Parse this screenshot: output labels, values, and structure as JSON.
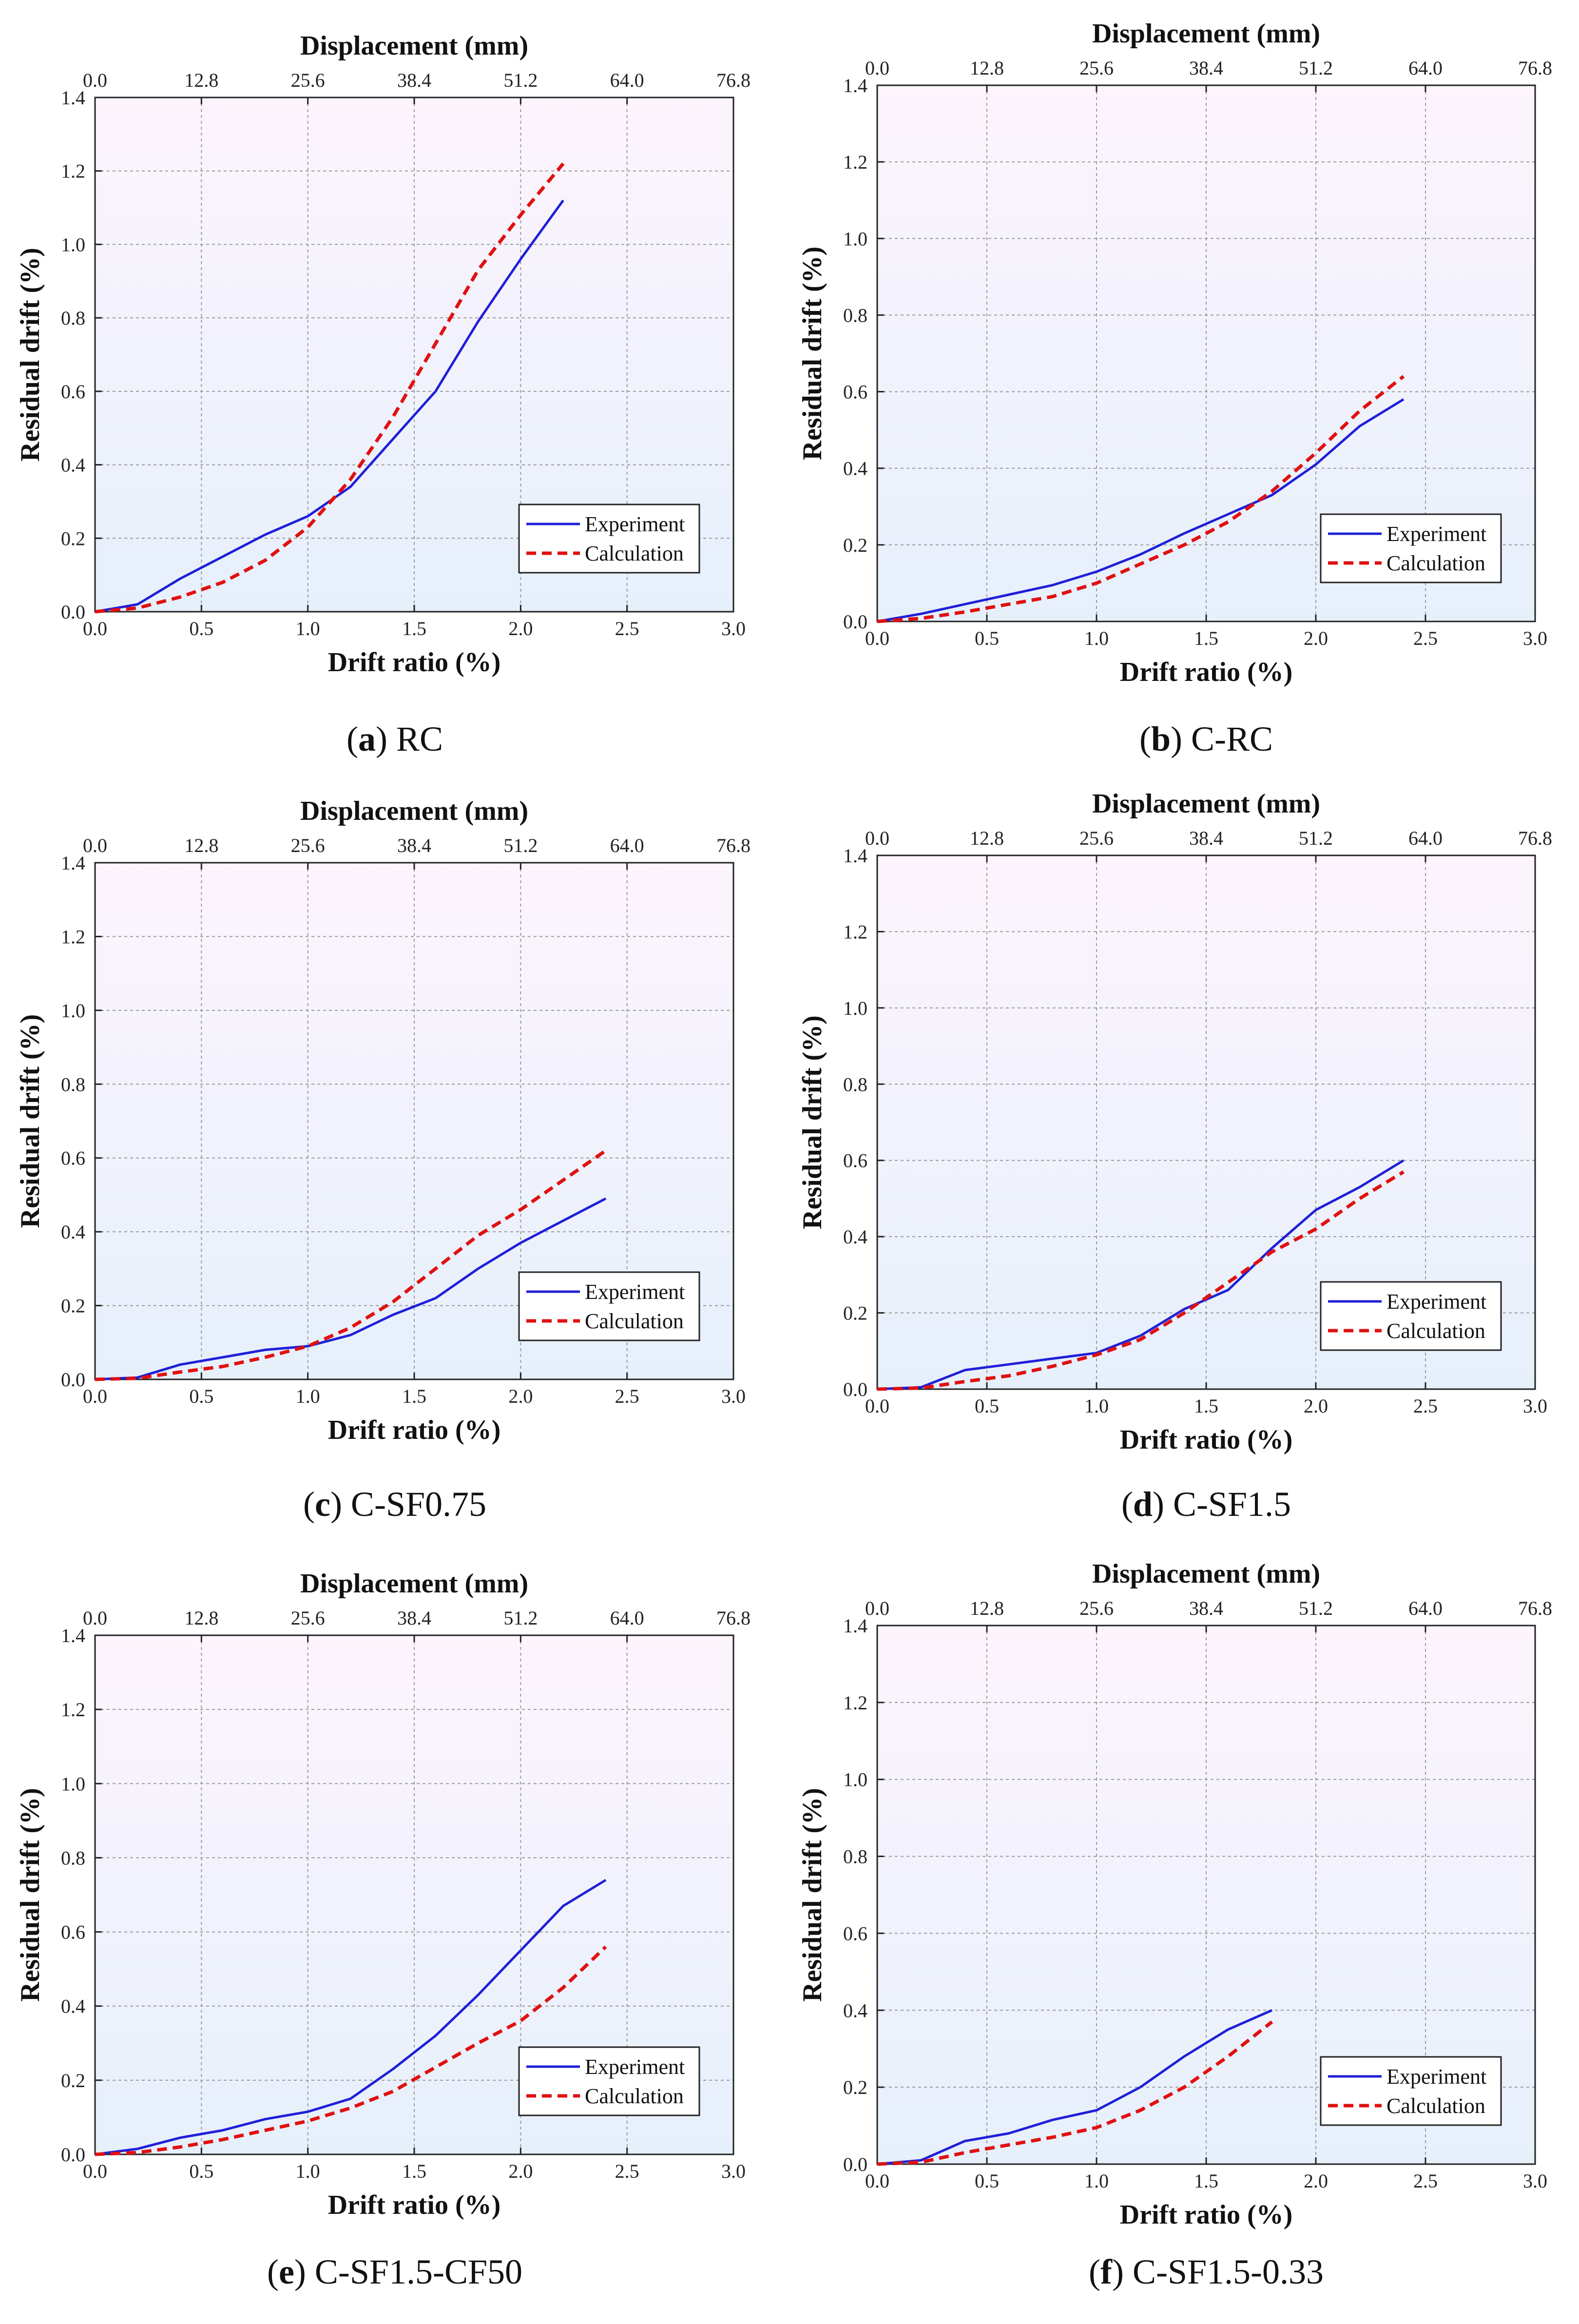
{
  "figure": {
    "panels_label": "Residual drift comparison panels"
  },
  "chart_data": [
    {
      "id": "a",
      "caption_letter": "a",
      "caption_text": "RC",
      "type": "line",
      "xlabel": "Drift ratio (%)",
      "x2label": "Displacement (mm)",
      "ylabel": "Residual drift (%)",
      "xlim": [
        0,
        3.0
      ],
      "ylim": [
        0,
        1.4
      ],
      "xticks": [
        "0.0",
        "0.5",
        "1.0",
        "1.5",
        "2.0",
        "2.5",
        "3.0"
      ],
      "x2ticks": [
        "0.0",
        "12.8",
        "25.6",
        "38.4",
        "51.2",
        "64.0",
        "76.8"
      ],
      "yticks": [
        "0.0",
        "0.2",
        "0.4",
        "0.6",
        "0.8",
        "1.0",
        "1.2",
        "1.4"
      ],
      "legend_position": "lower-right",
      "series": [
        {
          "name": "Experiment",
          "color": "#1f1fd8",
          "style": "solid",
          "x": [
            0,
            0.2,
            0.4,
            0.6,
            0.8,
            1.0,
            1.2,
            1.4,
            1.6,
            1.8,
            2.0,
            2.2
          ],
          "y": [
            0,
            0.02,
            0.09,
            0.15,
            0.21,
            0.26,
            0.34,
            0.47,
            0.6,
            0.79,
            0.96,
            1.12
          ]
        },
        {
          "name": "Calculation",
          "color": "#e01010",
          "style": "dashed",
          "x": [
            0,
            0.2,
            0.4,
            0.6,
            0.8,
            1.0,
            1.2,
            1.4,
            1.6,
            1.8,
            2.0,
            2.2
          ],
          "y": [
            0,
            0.01,
            0.04,
            0.08,
            0.14,
            0.23,
            0.36,
            0.53,
            0.73,
            0.93,
            1.08,
            1.22
          ]
        }
      ]
    },
    {
      "id": "b",
      "caption_letter": "b",
      "caption_text": "C-RC",
      "type": "line",
      "xlabel": "Drift ratio (%)",
      "x2label": "Displacement (mm)",
      "ylabel": "Residual drift (%)",
      "xlim": [
        0,
        3.0
      ],
      "ylim": [
        0,
        1.4
      ],
      "xticks": [
        "0.0",
        "0.5",
        "1.0",
        "1.5",
        "2.0",
        "2.5",
        "3.0"
      ],
      "x2ticks": [
        "0.0",
        "12.8",
        "25.6",
        "38.4",
        "51.2",
        "64.0",
        "76.8"
      ],
      "yticks": [
        "0.0",
        "0.2",
        "0.4",
        "0.6",
        "0.8",
        "1.0",
        "1.2",
        "1.4"
      ],
      "legend_position": "lower-right",
      "series": [
        {
          "name": "Experiment",
          "color": "#1f1fd8",
          "style": "solid",
          "x": [
            0,
            0.2,
            0.4,
            0.6,
            0.8,
            1.0,
            1.2,
            1.4,
            1.6,
            1.8,
            2.0,
            2.2,
            2.4
          ],
          "y": [
            0,
            0.02,
            0.045,
            0.07,
            0.095,
            0.13,
            0.175,
            0.23,
            0.28,
            0.33,
            0.41,
            0.51,
            0.58
          ]
        },
        {
          "name": "Calculation",
          "color": "#e01010",
          "style": "dashed",
          "x": [
            0,
            0.2,
            0.4,
            0.6,
            0.8,
            1.0,
            1.2,
            1.4,
            1.6,
            1.8,
            2.0,
            2.2,
            2.4
          ],
          "y": [
            0,
            0.008,
            0.025,
            0.045,
            0.065,
            0.1,
            0.15,
            0.2,
            0.26,
            0.34,
            0.44,
            0.55,
            0.64
          ]
        }
      ]
    },
    {
      "id": "c",
      "caption_letter": "c",
      "caption_text": "C-SF0.75",
      "type": "line",
      "xlabel": "Drift ratio (%)",
      "x2label": "Displacement (mm)",
      "ylabel": "Residual drift (%)",
      "xlim": [
        0,
        3.0
      ],
      "ylim": [
        0,
        1.4
      ],
      "xticks": [
        "0.0",
        "0.5",
        "1.0",
        "1.5",
        "2.0",
        "2.5",
        "3.0"
      ],
      "x2ticks": [
        "0.0",
        "12.8",
        "25.6",
        "38.4",
        "51.2",
        "64.0",
        "76.8"
      ],
      "yticks": [
        "0.0",
        "0.2",
        "0.4",
        "0.6",
        "0.8",
        "1.0",
        "1.2",
        "1.4"
      ],
      "legend_position": "lower-right",
      "series": [
        {
          "name": "Experiment",
          "color": "#1f1fd8",
          "style": "solid",
          "x": [
            0,
            0.2,
            0.4,
            0.6,
            0.8,
            1.0,
            1.2,
            1.4,
            1.6,
            1.8,
            2.0,
            2.2,
            2.4
          ],
          "y": [
            0,
            0.005,
            0.04,
            0.06,
            0.08,
            0.09,
            0.12,
            0.175,
            0.22,
            0.3,
            0.37,
            0.43,
            0.49
          ]
        },
        {
          "name": "Calculation",
          "color": "#e01010",
          "style": "dashed",
          "x": [
            0,
            0.2,
            0.4,
            0.6,
            0.8,
            1.0,
            1.2,
            1.4,
            1.6,
            1.8,
            2.0,
            2.2,
            2.4
          ],
          "y": [
            0,
            0.003,
            0.02,
            0.035,
            0.06,
            0.09,
            0.14,
            0.21,
            0.3,
            0.39,
            0.46,
            0.54,
            0.62
          ]
        }
      ]
    },
    {
      "id": "d",
      "caption_letter": "d",
      "caption_text": "C-SF1.5",
      "type": "line",
      "xlabel": "Drift ratio (%)",
      "x2label": "Displacement (mm)",
      "ylabel": "Residual drift (%)",
      "xlim": [
        0,
        3.0
      ],
      "ylim": [
        0,
        1.4
      ],
      "xticks": [
        "0.0",
        "0.5",
        "1.0",
        "1.5",
        "2.0",
        "2.5",
        "3.0"
      ],
      "x2ticks": [
        "0.0",
        "12.8",
        "25.6",
        "38.4",
        "51.2",
        "64.0",
        "76.8"
      ],
      "yticks": [
        "0.0",
        "0.2",
        "0.4",
        "0.6",
        "0.8",
        "1.0",
        "1.2",
        "1.4"
      ],
      "legend_position": "lower-right",
      "series": [
        {
          "name": "Experiment",
          "color": "#1f1fd8",
          "style": "solid",
          "x": [
            0,
            0.2,
            0.4,
            0.6,
            0.8,
            1.0,
            1.2,
            1.4,
            1.6,
            1.8,
            2.0,
            2.2,
            2.4
          ],
          "y": [
            0,
            0.005,
            0.05,
            0.065,
            0.08,
            0.095,
            0.14,
            0.21,
            0.26,
            0.37,
            0.47,
            0.53,
            0.6
          ]
        },
        {
          "name": "Calculation",
          "color": "#e01010",
          "style": "dashed",
          "x": [
            0,
            0.2,
            0.4,
            0.6,
            0.8,
            1.0,
            1.2,
            1.4,
            1.6,
            1.8,
            2.0,
            2.2,
            2.4
          ],
          "y": [
            0,
            0.003,
            0.02,
            0.035,
            0.06,
            0.09,
            0.13,
            0.2,
            0.28,
            0.36,
            0.42,
            0.5,
            0.57
          ]
        }
      ]
    },
    {
      "id": "e",
      "caption_letter": "e",
      "caption_text": "C-SF1.5-CF50",
      "type": "line",
      "xlabel": "Drift ratio (%)",
      "x2label": "Displacement (mm)",
      "ylabel": "Residual drift (%)",
      "xlim": [
        0,
        3.0
      ],
      "ylim": [
        0,
        1.4
      ],
      "xticks": [
        "0.0",
        "0.5",
        "1.0",
        "1.5",
        "2.0",
        "2.5",
        "3.0"
      ],
      "x2ticks": [
        "0.0",
        "12.8",
        "25.6",
        "38.4",
        "51.2",
        "64.0",
        "76.8"
      ],
      "yticks": [
        "0.0",
        "0.2",
        "0.4",
        "0.6",
        "0.8",
        "1.0",
        "1.2",
        "1.4"
      ],
      "legend_position": "lower-right",
      "series": [
        {
          "name": "Experiment",
          "color": "#1f1fd8",
          "style": "solid",
          "x": [
            0,
            0.2,
            0.4,
            0.6,
            0.8,
            1.0,
            1.2,
            1.4,
            1.6,
            1.8,
            2.0,
            2.2,
            2.4
          ],
          "y": [
            0,
            0.015,
            0.045,
            0.065,
            0.095,
            0.115,
            0.15,
            0.23,
            0.32,
            0.43,
            0.55,
            0.67,
            0.74
          ]
        },
        {
          "name": "Calculation",
          "color": "#e01010",
          "style": "dashed",
          "x": [
            0,
            0.2,
            0.4,
            0.6,
            0.8,
            1.0,
            1.2,
            1.4,
            1.6,
            1.8,
            2.0,
            2.2,
            2.4
          ],
          "y": [
            0,
            0.005,
            0.02,
            0.04,
            0.065,
            0.09,
            0.125,
            0.17,
            0.235,
            0.3,
            0.36,
            0.45,
            0.56
          ]
        }
      ]
    },
    {
      "id": "f",
      "caption_letter": "f",
      "caption_text": "C-SF1.5-0.33",
      "type": "line",
      "xlabel": "Drift ratio (%)",
      "x2label": "Displacement (mm)",
      "ylabel": "Residual drift (%)",
      "xlim": [
        0,
        3.0
      ],
      "ylim": [
        0,
        1.4
      ],
      "xticks": [
        "0.0",
        "0.5",
        "1.0",
        "1.5",
        "2.0",
        "2.5",
        "3.0"
      ],
      "x2ticks": [
        "0.0",
        "12.8",
        "25.6",
        "38.4",
        "51.2",
        "64.0",
        "76.8"
      ],
      "yticks": [
        "0.0",
        "0.2",
        "0.4",
        "0.6",
        "0.8",
        "1.0",
        "1.2",
        "1.4"
      ],
      "legend_position": "lower-right",
      "series": [
        {
          "name": "Experiment",
          "color": "#1f1fd8",
          "style": "solid",
          "x": [
            0,
            0.2,
            0.4,
            0.6,
            0.8,
            1.0,
            1.2,
            1.4,
            1.6,
            1.8
          ],
          "y": [
            0,
            0.01,
            0.06,
            0.08,
            0.115,
            0.14,
            0.2,
            0.28,
            0.35,
            0.4
          ]
        },
        {
          "name": "Calculation",
          "color": "#e01010",
          "style": "dashed",
          "x": [
            0,
            0.2,
            0.4,
            0.6,
            0.8,
            1.0,
            1.2,
            1.4,
            1.6,
            1.8
          ],
          "y": [
            0,
            0.005,
            0.03,
            0.05,
            0.07,
            0.095,
            0.14,
            0.2,
            0.28,
            0.37
          ]
        }
      ]
    }
  ]
}
